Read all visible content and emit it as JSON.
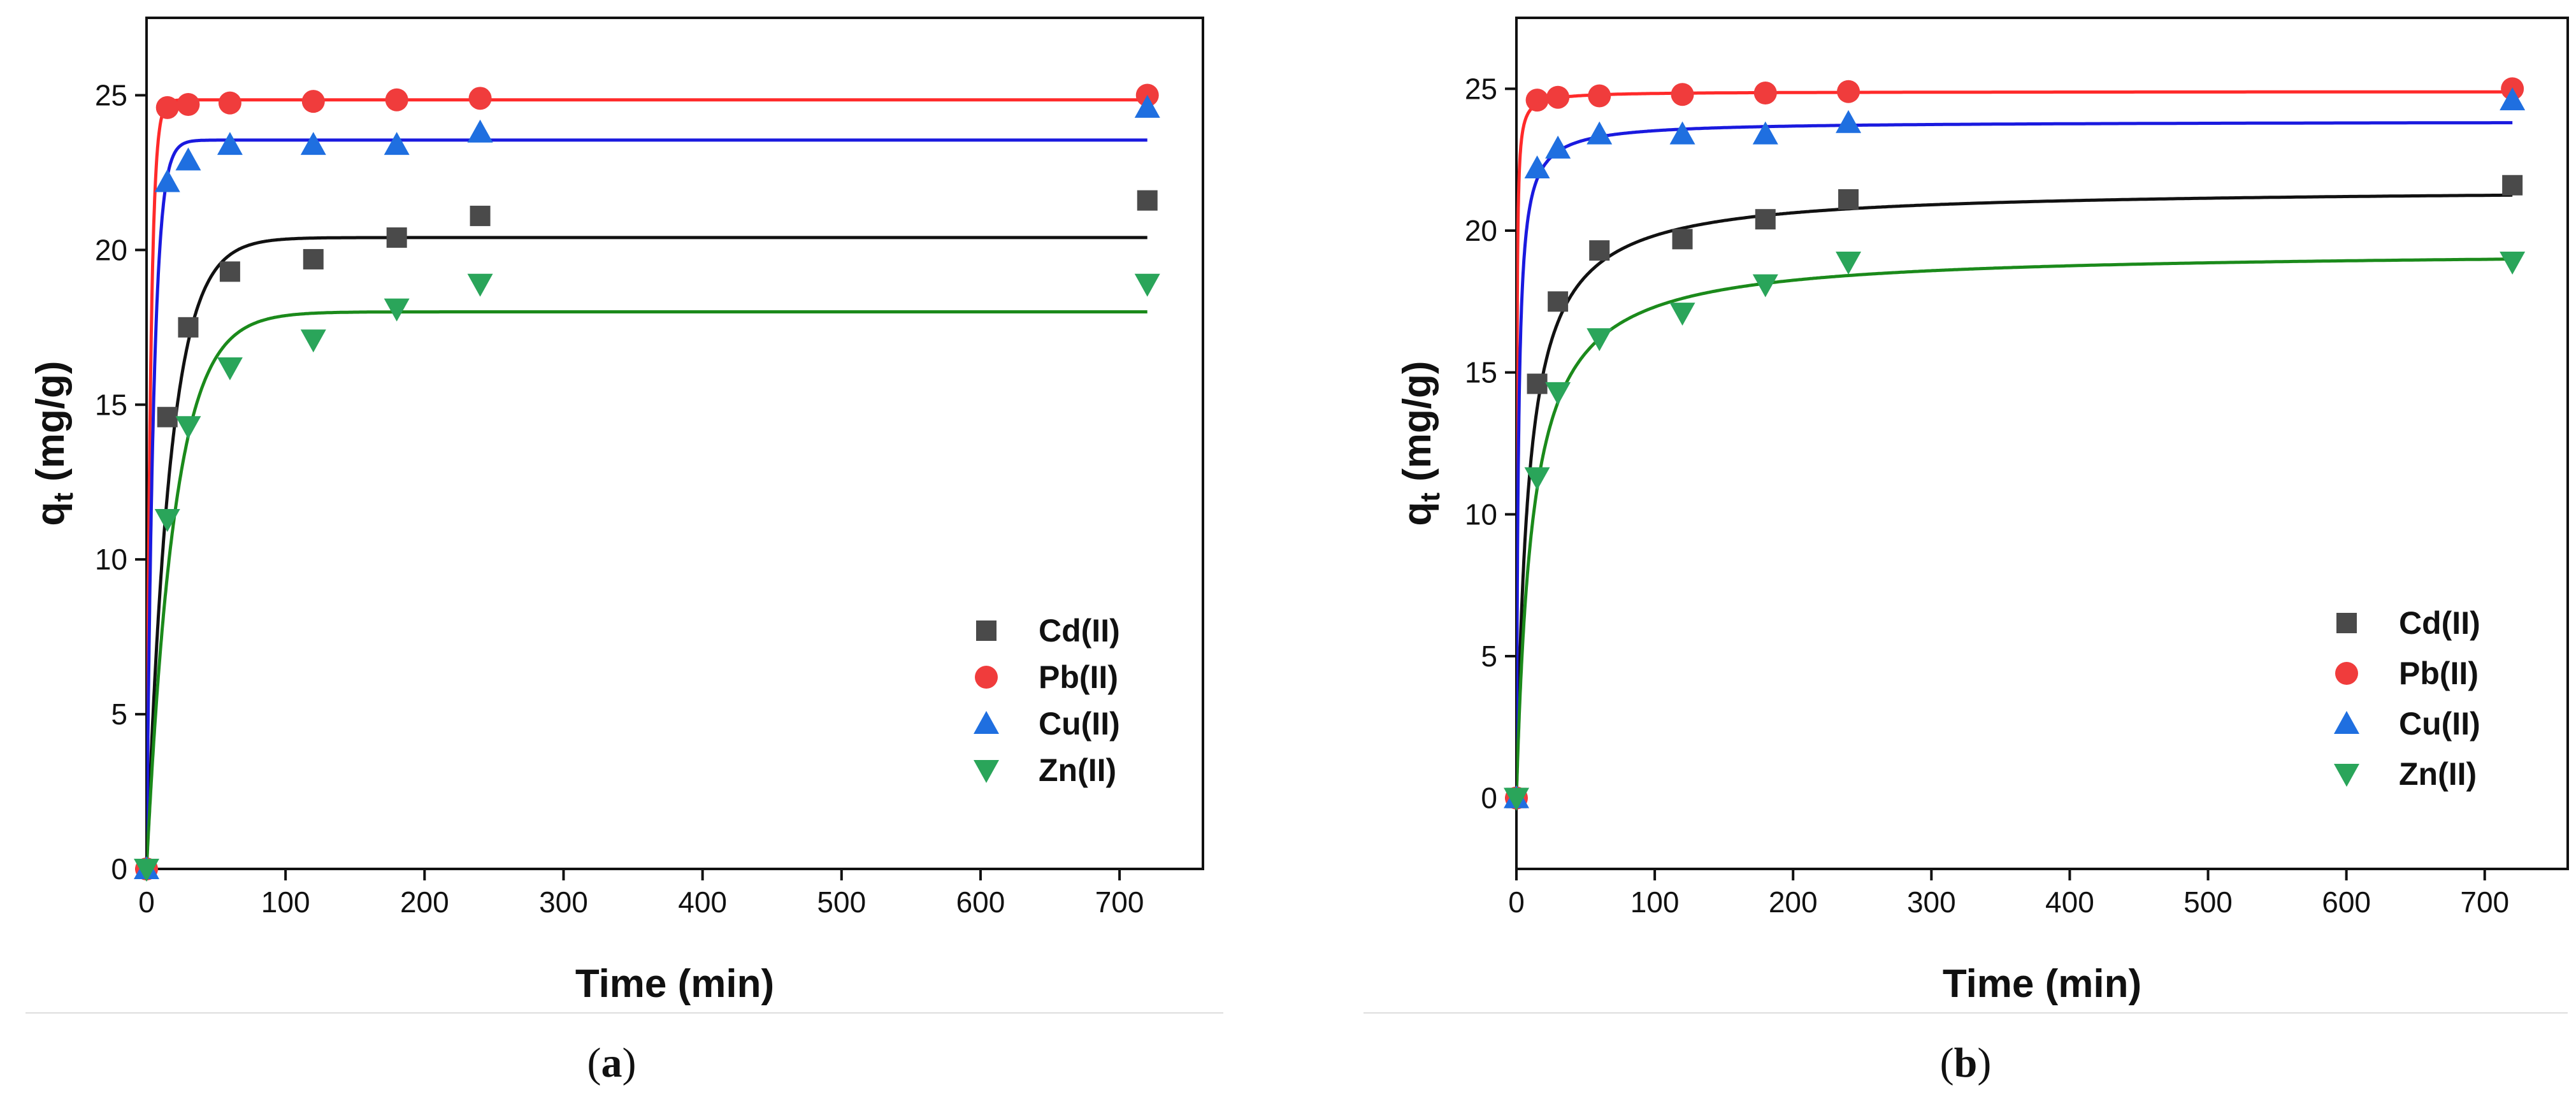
{
  "colors": {
    "Cd(II)": "#4a4a4a",
    "Pb(II)": "#f03c3c",
    "Cu(II)": "#1f6fe0",
    "Zn(II)": "#2aa55a",
    "Cd_line": "#111111",
    "Pb_line": "#ff2a2a",
    "Cu_line": "#1a1adf",
    "Zn_line": "#1b8a1b"
  },
  "chart_data": [
    {
      "type": "scatter",
      "panel_label": "a",
      "title": "",
      "xlabel": "Time (min)",
      "ylabel_main": "q",
      "ylabel_sub": "t",
      "ylabel_unit": "(mg/g)",
      "xlim": [
        0,
        760
      ],
      "ylim": [
        0,
        27.5
      ],
      "xticks": [
        0,
        100,
        200,
        300,
        400,
        500,
        600,
        700
      ],
      "yticks": [
        0,
        5,
        10,
        15,
        20,
        25
      ],
      "legend_position": "bottom-right",
      "series": [
        {
          "name": "Cd(II)",
          "marker": "square",
          "x": [
            0,
            15,
            30,
            60,
            120,
            180,
            240,
            720
          ],
          "y": [
            0,
            14.6,
            17.5,
            19.3,
            19.7,
            20.4,
            21.1,
            21.6
          ],
          "fit": {
            "model": "pfo",
            "qe": 20.4,
            "k": 0.06
          }
        },
        {
          "name": "Pb(II)",
          "marker": "circle",
          "x": [
            0,
            15,
            30,
            60,
            120,
            180,
            240,
            720
          ],
          "y": [
            0,
            24.6,
            24.7,
            24.75,
            24.8,
            24.85,
            24.9,
            25.0
          ],
          "fit": {
            "model": "pfo",
            "qe": 24.85,
            "k": 0.35
          }
        },
        {
          "name": "Cu(II)",
          "marker": "triangle-up",
          "x": [
            0,
            15,
            30,
            60,
            120,
            180,
            240,
            720
          ],
          "y": [
            0,
            22.2,
            22.9,
            23.4,
            23.4,
            23.4,
            23.8,
            24.6
          ],
          "fit": {
            "model": "pfo",
            "qe": 23.55,
            "k": 0.2
          }
        },
        {
          "name": "Zn(II)",
          "marker": "triangle-down",
          "x": [
            0,
            15,
            30,
            60,
            120,
            180,
            240,
            720
          ],
          "y": [
            0,
            11.3,
            14.3,
            16.2,
            17.1,
            18.1,
            18.9,
            18.9
          ],
          "fit": {
            "model": "pfo",
            "qe": 18.0,
            "k": 0.05
          }
        }
      ]
    },
    {
      "type": "scatter",
      "panel_label": "b",
      "title": "",
      "xlabel": "Time (min)",
      "ylabel_main": "q",
      "ylabel_sub": "t",
      "ylabel_unit": "(mg/g)",
      "xlim": [
        0,
        760
      ],
      "ylim": [
        -2.5,
        27.5
      ],
      "xticks": [
        0,
        100,
        200,
        300,
        400,
        500,
        600,
        700
      ],
      "yticks": [
        0,
        5,
        10,
        15,
        20,
        25
      ],
      "legend_position": "bottom-right",
      "series": [
        {
          "name": "Cd(II)",
          "marker": "square",
          "x": [
            0,
            15,
            30,
            60,
            120,
            180,
            240,
            720
          ],
          "y": [
            0,
            14.6,
            17.5,
            19.3,
            19.7,
            20.4,
            21.1,
            21.6
          ],
          "fit": {
            "model": "pso",
            "qe": 21.5,
            "k": 0.0055
          }
        },
        {
          "name": "Pb(II)",
          "marker": "circle",
          "x": [
            0,
            15,
            30,
            60,
            120,
            180,
            240,
            720
          ],
          "y": [
            0,
            24.6,
            24.7,
            24.75,
            24.8,
            24.85,
            24.9,
            25.0
          ],
          "fit": {
            "model": "pso",
            "qe": 24.9,
            "k": 0.15
          }
        },
        {
          "name": "Cu(II)",
          "marker": "triangle-up",
          "x": [
            0,
            15,
            30,
            60,
            120,
            180,
            240,
            720
          ],
          "y": [
            0,
            22.2,
            22.9,
            23.4,
            23.4,
            23.4,
            23.8,
            24.6
          ],
          "fit": {
            "model": "pso",
            "qe": 23.85,
            "k": 0.03
          }
        },
        {
          "name": "Zn(II)",
          "marker": "triangle-down",
          "x": [
            0,
            15,
            30,
            60,
            120,
            180,
            240,
            720
          ],
          "y": [
            0,
            11.3,
            14.3,
            16.2,
            17.1,
            18.1,
            18.9,
            18.9
          ],
          "fit": {
            "model": "pso",
            "qe": 19.3,
            "k": 0.0045
          }
        }
      ]
    }
  ]
}
